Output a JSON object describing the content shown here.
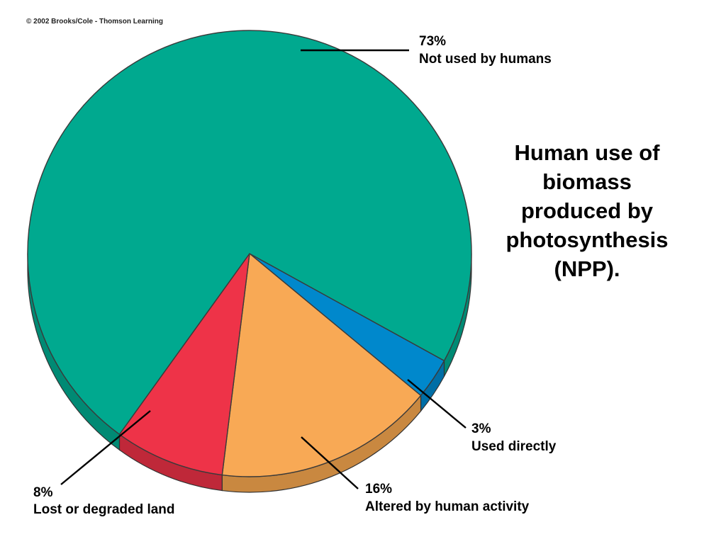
{
  "copyright": "© 2002 Brooks/Cole - Thomson Learning",
  "chart_data": {
    "type": "pie",
    "title_lines": [
      "Human use of",
      "biomass",
      "produced by",
      "photosynthesis",
      "(NPP)."
    ],
    "slices": [
      {
        "percent_label": "73%",
        "label": "Not used by humans",
        "value": 73,
        "color": "#00A98F",
        "side_color": "#008A74"
      },
      {
        "percent_label": "3%",
        "label": "Used directly",
        "value": 3,
        "color": "#0088CC",
        "side_color": "#006EA6"
      },
      {
        "percent_label": "16%",
        "label": "Altered by human activity",
        "value": 16,
        "color": "#F8A955",
        "side_color": "#C98840"
      },
      {
        "percent_label": "8%",
        "label": "Lost or degraded land",
        "value": 8,
        "color": "#EE3348",
        "side_color": "#BF2839"
      }
    ]
  }
}
